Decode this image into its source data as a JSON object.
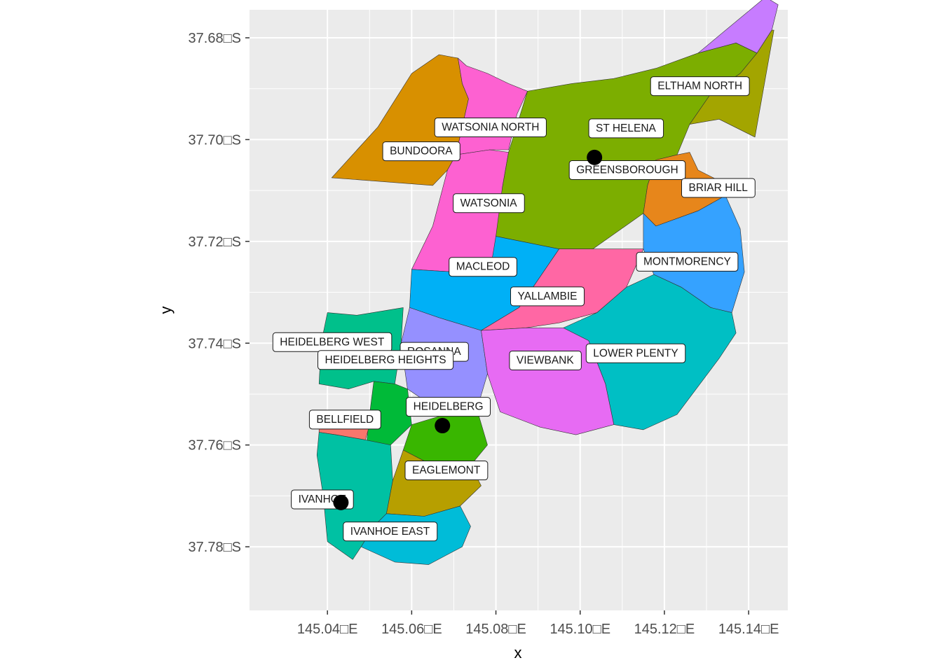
{
  "chart_data": {
    "type": "map",
    "xlabel": "x",
    "ylabel": "y",
    "xlim": [
      145.0215,
      145.1493
    ],
    "ylim": [
      -37.7925,
      -37.6745
    ],
    "x_ticks": [
      {
        "value": 145.04,
        "label": "145.04□E"
      },
      {
        "value": 145.06,
        "label": "145.06□E"
      },
      {
        "value": 145.08,
        "label": "145.08□E"
      },
      {
        "value": 145.1,
        "label": "145.10□E"
      },
      {
        "value": 145.12,
        "label": "145.12□E"
      },
      {
        "value": 145.14,
        "label": "145.14□E"
      }
    ],
    "y_ticks": [
      {
        "value": -37.68,
        "label": "37.68□S"
      },
      {
        "value": -37.7,
        "label": "37.70□S"
      },
      {
        "value": -37.72,
        "label": "37.72□S"
      },
      {
        "value": -37.74,
        "label": "37.74□S"
      },
      {
        "value": -37.76,
        "label": "37.76□S"
      },
      {
        "value": -37.78,
        "label": "37.78□S"
      }
    ],
    "grid": true,
    "background": "#ebebeb",
    "regions": [
      {
        "name": "BUNDOORA",
        "color": "#d89000",
        "label_at": [
          145.0697,
          -37.7023
        ],
        "polygon": [
          [
            145.041,
            -37.7075
          ],
          [
            145.052,
            -37.6975
          ],
          [
            145.06,
            -37.687
          ],
          [
            145.0665,
            -37.6833
          ],
          [
            145.071,
            -37.684
          ],
          [
            145.072,
            -37.689
          ],
          [
            145.0735,
            -37.692
          ],
          [
            145.0705,
            -37.703
          ],
          [
            145.0685,
            -37.706
          ],
          [
            145.065,
            -37.709
          ]
        ]
      },
      {
        "name": "WATSONIA NORTH",
        "color": "#fd61d1",
        "label_at": [
          145.0903,
          -37.6976
        ],
        "polygon": [
          [
            145.071,
            -37.684
          ],
          [
            145.073,
            -37.6855
          ],
          [
            145.078,
            -37.687
          ],
          [
            145.083,
            -37.689
          ],
          [
            145.0875,
            -37.6905
          ],
          [
            145.085,
            -37.695
          ],
          [
            145.083,
            -37.702
          ],
          [
            145.0785,
            -37.702
          ],
          [
            145.0705,
            -37.703
          ],
          [
            145.0735,
            -37.692
          ],
          [
            145.072,
            -37.689
          ]
        ]
      },
      {
        "name": "WATSONIA",
        "color": "#fd61d1",
        "label_at": [
          145.085,
          -37.7125
        ],
        "polygon": [
          [
            145.0705,
            -37.703
          ],
          [
            145.0785,
            -37.702
          ],
          [
            145.083,
            -37.7025
          ],
          [
            145.0815,
            -37.7095
          ],
          [
            145.0825,
            -37.7135
          ],
          [
            145.0805,
            -37.7185
          ],
          [
            145.079,
            -37.724
          ],
          [
            145.07,
            -37.726
          ],
          [
            145.06,
            -37.7255
          ],
          [
            145.065,
            -37.717
          ],
          [
            145.0685,
            -37.706
          ]
        ]
      },
      {
        "name": "GREENSBOROUGH",
        "color": "#7cae00",
        "label_at": [
          145.1233,
          -37.706
        ],
        "polygon": [
          [
            145.0875,
            -37.6905
          ],
          [
            145.098,
            -37.689
          ],
          [
            145.108,
            -37.688
          ],
          [
            145.118,
            -37.686
          ],
          [
            145.128,
            -37.683
          ],
          [
            145.137,
            -37.681
          ],
          [
            145.142,
            -37.683
          ],
          [
            145.138,
            -37.687
          ],
          [
            145.131,
            -37.691
          ],
          [
            145.126,
            -37.697
          ],
          [
            145.123,
            -37.703
          ],
          [
            145.118,
            -37.704
          ],
          [
            145.116,
            -37.709
          ],
          [
            145.115,
            -37.7145
          ],
          [
            145.103,
            -37.7215
          ],
          [
            145.095,
            -37.7215
          ],
          [
            145.08,
            -37.719
          ],
          [
            145.0815,
            -37.7095
          ],
          [
            145.083,
            -37.7025
          ]
        ]
      },
      {
        "name": "ST HELENA",
        "color": "#c77cff",
        "label_at": [
          145.118,
          -37.6978
        ],
        "polygon": [
          [
            145.128,
            -37.683
          ],
          [
            145.144,
            -37.672
          ],
          [
            145.147,
            -37.6735
          ],
          [
            145.1455,
            -37.6785
          ],
          [
            145.142,
            -37.683
          ],
          [
            145.137,
            -37.681
          ]
        ]
      },
      {
        "name": "ELTHAM NORTH",
        "color": "#a3a500",
        "label_at": [
          145.1385,
          -37.6895
        ],
        "polygon": [
          [
            145.142,
            -37.683
          ],
          [
            145.1455,
            -37.6785
          ],
          [
            145.146,
            -37.6785
          ],
          [
            145.1415,
            -37.6995
          ],
          [
            145.133,
            -37.696
          ],
          [
            145.126,
            -37.697
          ],
          [
            145.131,
            -37.691
          ],
          [
            145.138,
            -37.687
          ]
        ]
      },
      {
        "name": "BRIAR HILL",
        "color": "#e7861b",
        "label_at": [
          145.1398,
          -37.7095
        ],
        "polygon": [
          [
            145.118,
            -37.704
          ],
          [
            145.123,
            -37.703
          ],
          [
            145.126,
            -37.7025
          ],
          [
            145.128,
            -37.706
          ],
          [
            145.134,
            -37.7085
          ],
          [
            145.1345,
            -37.711
          ],
          [
            145.128,
            -37.714
          ],
          [
            145.118,
            -37.717
          ],
          [
            145.115,
            -37.7145
          ],
          [
            145.116,
            -37.709
          ]
        ]
      },
      {
        "name": "MONTMORENCY",
        "color": "#35a2ff",
        "label_at": [
          145.1358,
          -37.724
        ],
        "polygon": [
          [
            145.115,
            -37.7145
          ],
          [
            145.118,
            -37.717
          ],
          [
            145.128,
            -37.714
          ],
          [
            145.1345,
            -37.711
          ],
          [
            145.138,
            -37.7175
          ],
          [
            145.139,
            -37.726
          ],
          [
            145.136,
            -37.734
          ],
          [
            145.131,
            -37.733
          ],
          [
            145.124,
            -37.729
          ],
          [
            145.1175,
            -37.7265
          ],
          [
            145.115,
            -37.7215
          ]
        ]
      },
      {
        "name": "MACLEOD",
        "color": "#00b0f6",
        "label_at": [
          145.0833,
          -37.725
        ],
        "polygon": [
          [
            145.06,
            -37.7255
          ],
          [
            145.07,
            -37.726
          ],
          [
            145.079,
            -37.724
          ],
          [
            145.08,
            -37.719
          ],
          [
            145.095,
            -37.7215
          ],
          [
            145.0855,
            -37.733
          ],
          [
            145.0765,
            -37.7375
          ],
          [
            145.0665,
            -37.735
          ],
          [
            145.0595,
            -37.733
          ]
        ]
      },
      {
        "name": "YALLAMBIE",
        "color": "#ff67a4",
        "label_at": [
          145.0993,
          -37.7308
        ],
        "polygon": [
          [
            145.095,
            -37.7215
          ],
          [
            145.103,
            -37.7215
          ],
          [
            145.115,
            -37.7215
          ],
          [
            145.111,
            -37.729
          ],
          [
            145.104,
            -37.734
          ],
          [
            145.095,
            -37.736
          ],
          [
            145.087,
            -37.737
          ],
          [
            145.0765,
            -37.7375
          ],
          [
            145.0855,
            -37.733
          ]
        ]
      },
      {
        "name": "LOWER PLENTY",
        "color": "#00bfc4",
        "label_at": [
          145.1233,
          -37.742
        ],
        "polygon": [
          [
            145.1175,
            -37.7265
          ],
          [
            145.124,
            -37.729
          ],
          [
            145.131,
            -37.733
          ],
          [
            145.136,
            -37.734
          ],
          [
            145.137,
            -37.738
          ],
          [
            145.133,
            -37.743
          ],
          [
            145.123,
            -37.754
          ],
          [
            145.115,
            -37.757
          ],
          [
            145.108,
            -37.756
          ],
          [
            145.106,
            -37.748
          ],
          [
            145.102,
            -37.7395
          ],
          [
            145.096,
            -37.737
          ],
          [
            145.104,
            -37.734
          ],
          [
            145.111,
            -37.729
          ]
        ]
      },
      {
        "name": "ROSANNA",
        "color": "#9590ff",
        "label_at": [
          145.0717,
          -37.7417
        ],
        "polygon": [
          [
            145.0595,
            -37.733
          ],
          [
            145.0665,
            -37.735
          ],
          [
            145.0765,
            -37.7375
          ],
          [
            145.078,
            -37.746
          ],
          [
            145.0755,
            -37.753
          ],
          [
            145.068,
            -37.754
          ],
          [
            145.059,
            -37.749
          ],
          [
            145.0575,
            -37.74
          ]
        ]
      },
      {
        "name": "VIEWBANK",
        "color": "#e76bf3",
        "label_at": [
          145.0985,
          -37.7434
        ],
        "polygon": [
          [
            145.0765,
            -37.7375
          ],
          [
            145.087,
            -37.737
          ],
          [
            145.096,
            -37.737
          ],
          [
            145.102,
            -37.7395
          ],
          [
            145.106,
            -37.748
          ],
          [
            145.108,
            -37.756
          ],
          [
            145.099,
            -37.758
          ],
          [
            145.0905,
            -37.7565
          ],
          [
            145.081,
            -37.7535
          ],
          [
            145.078,
            -37.746
          ]
        ]
      },
      {
        "name": "HEIDELBERG WEST",
        "color": "#00c08b",
        "label_at": [
          145.0535,
          -37.7398
        ],
        "polygon": [
          [
            145.04,
            -37.734
          ],
          [
            145.047,
            -37.7345
          ],
          [
            145.058,
            -37.733
          ],
          [
            145.0575,
            -37.74
          ],
          [
            145.056,
            -37.748
          ],
          [
            145.051,
            -37.7475
          ],
          [
            145.045,
            -37.749
          ],
          [
            145.038,
            -37.748
          ],
          [
            145.0385,
            -37.74
          ]
        ]
      },
      {
        "name": "HEIDELBERG HEIGHTS",
        "color": "#00ba38",
        "label_at": [
          145.0682,
          -37.7433
        ],
        "polygon": [
          [
            145.051,
            -37.7475
          ],
          [
            145.056,
            -37.748
          ],
          [
            145.059,
            -37.749
          ],
          [
            145.06,
            -37.756
          ],
          [
            145.055,
            -37.76
          ],
          [
            145.049,
            -37.762
          ],
          [
            145.05,
            -37.754
          ]
        ]
      },
      {
        "name": "HEIDELBERG",
        "color": "#39b600",
        "label_at": [
          145.077,
          -37.7525
        ],
        "polygon": [
          [
            145.06,
            -37.756
          ],
          [
            145.068,
            -37.754
          ],
          [
            145.0755,
            -37.753
          ],
          [
            145.078,
            -37.76
          ],
          [
            145.074,
            -37.764
          ],
          [
            145.065,
            -37.764
          ],
          [
            145.058,
            -37.761
          ]
        ]
      },
      {
        "name": "EAGLEMONT",
        "color": "#b79f00",
        "label_at": [
          145.0763,
          -37.765
        ],
        "polygon": [
          [
            145.058,
            -37.761
          ],
          [
            145.065,
            -37.764
          ],
          [
            145.074,
            -37.764
          ],
          [
            145.0765,
            -37.768
          ],
          [
            145.0715,
            -37.772
          ],
          [
            145.063,
            -37.774
          ],
          [
            145.054,
            -37.7735
          ],
          [
            145.0555,
            -37.767
          ]
        ]
      },
      {
        "name": "BELLFIELD",
        "color": "#f8766d",
        "label_at": [
          145.051,
          -37.755
        ],
        "polygon": [
          [
            145.038,
            -37.754
          ],
          [
            145.045,
            -37.7555
          ],
          [
            145.05,
            -37.756
          ],
          [
            145.049,
            -37.759
          ],
          [
            145.042,
            -37.758
          ],
          [
            145.038,
            -37.7575
          ]
        ]
      },
      {
        "name": "IVANHOE",
        "color": "#00c1a3",
        "label_at": [
          145.0445,
          -37.7707
        ],
        "polygon": [
          [
            145.038,
            -37.7575
          ],
          [
            145.042,
            -37.758
          ],
          [
            145.049,
            -37.759
          ],
          [
            145.055,
            -37.76
          ],
          [
            145.0555,
            -37.767
          ],
          [
            145.054,
            -37.7735
          ],
          [
            145.051,
            -37.776
          ],
          [
            145.048,
            -37.78
          ],
          [
            145.046,
            -37.7825
          ],
          [
            145.04,
            -37.779
          ],
          [
            145.039,
            -37.77
          ],
          [
            145.0375,
            -37.762
          ]
        ]
      },
      {
        "name": "IVANHOE EAST",
        "color": "#00bcd8",
        "label_at": [
          145.0643,
          -37.777
        ],
        "polygon": [
          [
            145.051,
            -37.776
          ],
          [
            145.054,
            -37.7735
          ],
          [
            145.063,
            -37.774
          ],
          [
            145.0715,
            -37.772
          ],
          [
            145.074,
            -37.776
          ],
          [
            145.072,
            -37.78
          ],
          [
            145.064,
            -37.7835
          ],
          [
            145.056,
            -37.783
          ],
          [
            145.048,
            -37.78
          ]
        ]
      }
    ],
    "points": [
      {
        "lon": 145.1034,
        "lat": -37.7035
      },
      {
        "lon": 145.0673,
        "lat": -37.7562
      },
      {
        "lon": 145.0432,
        "lat": -37.7713
      }
    ]
  }
}
